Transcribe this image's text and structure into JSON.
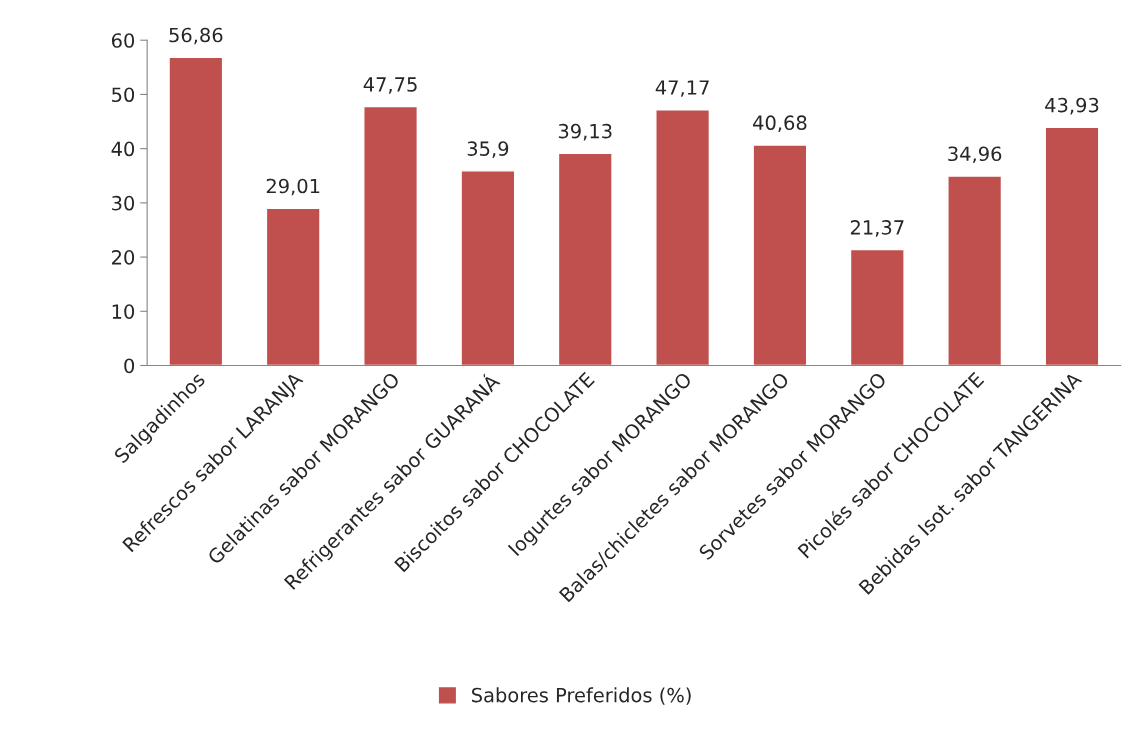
{
  "chart_data": {
    "type": "bar",
    "categories": [
      "Salgadinhos",
      "Refrescos sabor LARANJA",
      "Gelatinas sabor MORANGO",
      "Refrigerantes sabor GUARANÁ",
      "Biscoitos sabor CHOCOLATE",
      "Iogurtes sabor MORANGO",
      "Balas/chicletes sabor MORANGO",
      "Sorvetes sabor MORANGO",
      "Picolés sabor CHOCOLATE",
      "Bebidas Isot. sabor TANGERINA"
    ],
    "series": [
      {
        "name": "Sabores Preferidos (%)",
        "color": "#c0504d",
        "values": [
          56.86,
          29.01,
          47.75,
          35.9,
          39.13,
          47.17,
          40.68,
          21.37,
          34.96,
          43.93
        ],
        "value_labels": [
          "56,86",
          "29,01",
          "47,75",
          "35,9",
          "39,13",
          "47,17",
          "40,68",
          "21,37",
          "34,96",
          "43,93"
        ]
      }
    ],
    "ylim": [
      0,
      60
    ],
    "yticks": [
      0,
      10,
      20,
      30,
      40,
      50,
      60
    ],
    "grid": false,
    "legend": "bottom"
  }
}
